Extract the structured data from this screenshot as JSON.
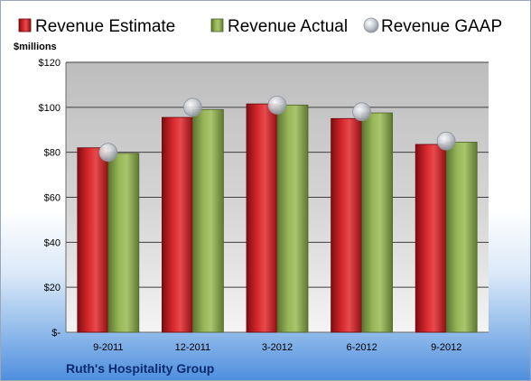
{
  "chart_data": {
    "type": "bar",
    "title": "",
    "xlabel": "",
    "ylabel": "$millions",
    "company": "Ruth's Hospitality Group",
    "categories": [
      "9-2011",
      "12-2011",
      "3-2012",
      "6-2012",
      "9-2012"
    ],
    "series": [
      {
        "name": "Revenue Estimate",
        "type": "bar",
        "color": "#c8171b",
        "values": [
          82,
          95.5,
          101.5,
          95,
          83.5
        ]
      },
      {
        "name": "Revenue Actual",
        "type": "bar",
        "color": "#8fae4e",
        "values": [
          79.5,
          99,
          101,
          97.5,
          84.5
        ]
      },
      {
        "name": "Revenue GAAP",
        "type": "marker",
        "color": "#b8bcc4",
        "values": [
          80,
          100,
          101,
          98,
          85
        ]
      }
    ],
    "ylim": [
      0,
      120
    ],
    "yticks": [
      0,
      20,
      40,
      60,
      80,
      100,
      120
    ],
    "ytick_labels": [
      "$-",
      "$20",
      "$40",
      "$60",
      "$80",
      "$100",
      "$120"
    ],
    "grid": true,
    "legend": "top"
  }
}
